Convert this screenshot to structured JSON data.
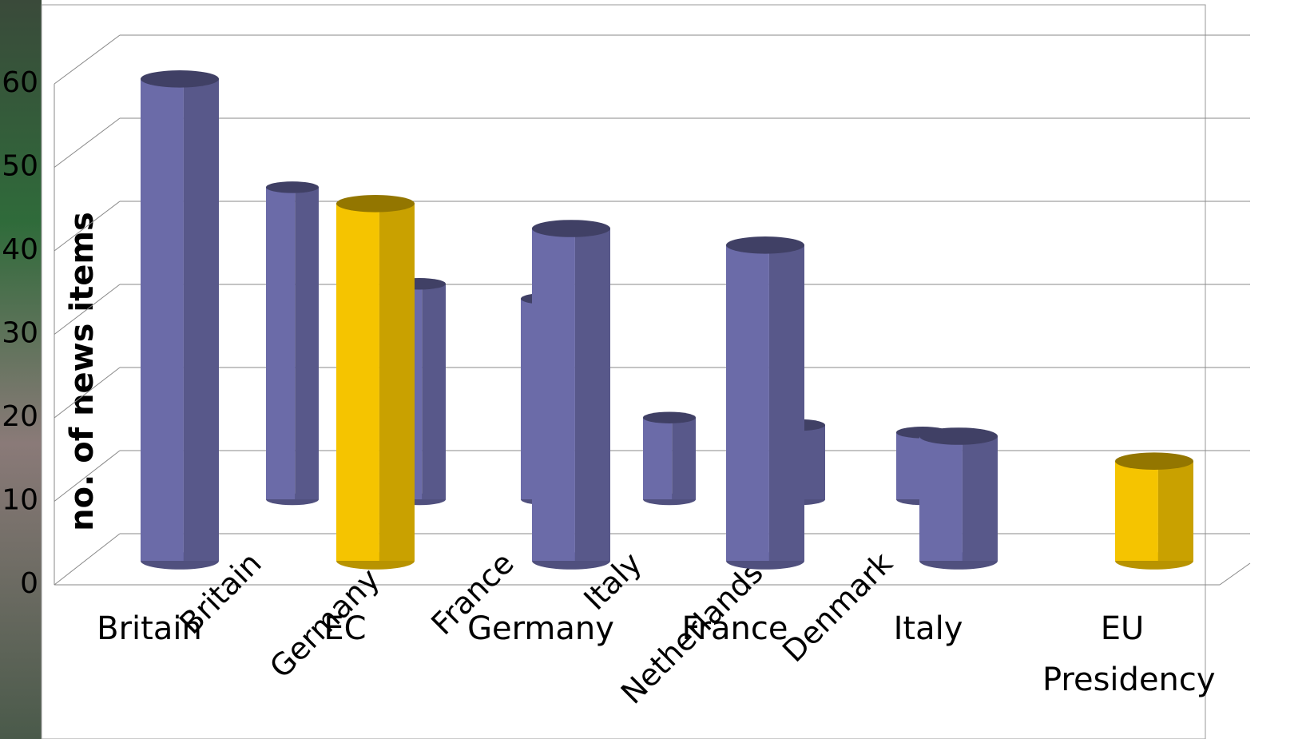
{
  "chart_data": {
    "type": "bar3d",
    "y_label": "no. of news items",
    "ylim": [
      0,
      60
    ],
    "yticks": [
      0,
      10,
      20,
      30,
      40,
      50,
      60
    ],
    "grid": true,
    "series": [
      {
        "categories": [
          "Britain",
          "Germany",
          "France",
          "Italy",
          "Netherlands",
          "Denmark"
        ],
        "color": "#6b6ba8",
        "values": [
          42,
          29,
          27,
          11,
          10,
          9
        ]
      },
      {
        "categories": [
          "Britain",
          "EC",
          "Germany",
          "France",
          "Italy",
          "EU Presidency"
        ],
        "colors": [
          "#6b6ba8",
          "#f5c400",
          "#6b6ba8",
          "#6b6ba8",
          "#6b6ba8",
          "#f5c400"
        ],
        "values": [
          58,
          43,
          40,
          38,
          15,
          12
        ]
      }
    ]
  }
}
